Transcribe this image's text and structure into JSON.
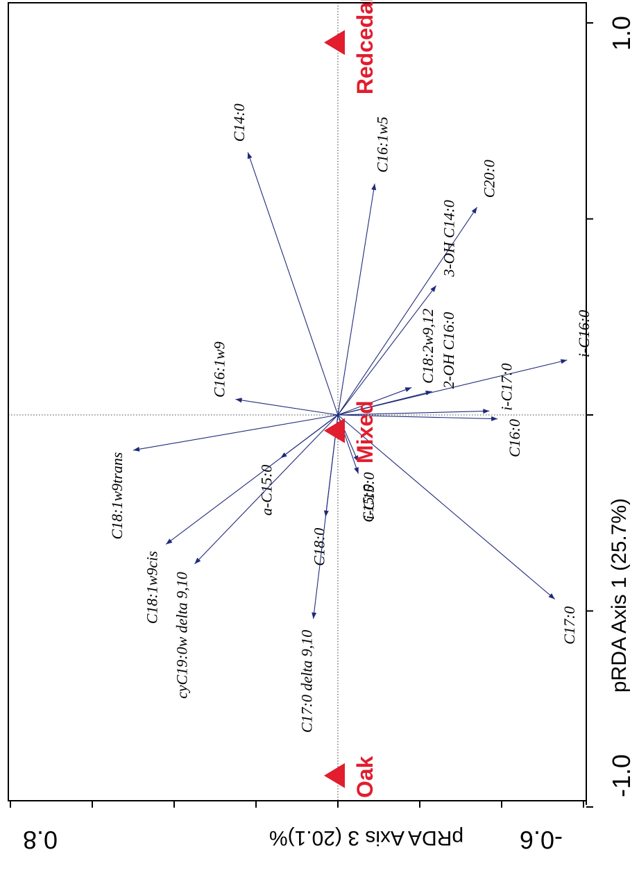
{
  "chart_data": {
    "type": "scatter",
    "subtype": "pRDA triplot (rotated 90°)",
    "colors": {
      "vectors": "#1f2a7a",
      "sites": "#e11d2e",
      "axes": "#000000"
    },
    "axis1": {
      "label": "pRDA Axis 1 (25.7%)",
      "range": [
        -1.0,
        1.0
      ],
      "tick_labels": [
        "-1.0",
        "1.0"
      ]
    },
    "axis3": {
      "label": "pRDA Axis 3 (20.1)%",
      "range": [
        -0.6,
        0.8
      ],
      "tick_labels": [
        "-0.6",
        "0.8"
      ]
    },
    "grid": false,
    "zero_lines": true,
    "sites": [
      {
        "name": "Redcedar",
        "ax1": 0.95,
        "ax3": 0.0
      },
      {
        "name": "Mixed",
        "ax1": -0.04,
        "ax3": 0.0
      },
      {
        "name": "Oak",
        "ax1": -0.92,
        "ax3": 0.0
      }
    ],
    "vectors": [
      {
        "name": "C14:0",
        "ax1": 0.67,
        "ax3": 0.22
      },
      {
        "name": "C16:1w5",
        "ax1": 0.59,
        "ax3": -0.09
      },
      {
        "name": "C20:0",
        "ax1": 0.53,
        "ax3": -0.34
      },
      {
        "name": "3-OH C14:0",
        "ax1": 0.33,
        "ax3": -0.24
      },
      {
        "name": "C18:2w9,12",
        "ax1": 0.07,
        "ax3": -0.18
      },
      {
        "name": "2-OH C16:0",
        "ax1": 0.06,
        "ax3": -0.23
      },
      {
        "name": "i-C16:0",
        "ax1": 0.14,
        "ax3": -0.56
      },
      {
        "name": "i-C17:0",
        "ax1": 0.01,
        "ax3": -0.37
      },
      {
        "name": "C16:0",
        "ax1": -0.01,
        "ax3": -0.39
      },
      {
        "name": "C16:1w9",
        "ax1": 0.04,
        "ax3": 0.25
      },
      {
        "name": "C18:1w9trans",
        "ax1": -0.09,
        "ax3": 0.5
      },
      {
        "name": "a-C15:0",
        "ax1": -0.11,
        "ax3": 0.14
      },
      {
        "name": "C18:1w9cis",
        "ax1": -0.33,
        "ax3": 0.42
      },
      {
        "name": "cyC19:0w delta 9,10",
        "ax1": -0.38,
        "ax3": 0.35
      },
      {
        "name": "i-C15:0",
        "ax1": -0.12,
        "ax3": -0.05
      },
      {
        "name": "C15:0",
        "ax1": -0.15,
        "ax3": -0.05
      },
      {
        "name": "C18:0",
        "ax1": -0.26,
        "ax3": 0.03
      },
      {
        "name": "C17:0 delta 9,10",
        "ax1": -0.52,
        "ax3": 0.06
      },
      {
        "name": "C17:0",
        "ax1": -0.47,
        "ax3": -0.53
      }
    ]
  }
}
